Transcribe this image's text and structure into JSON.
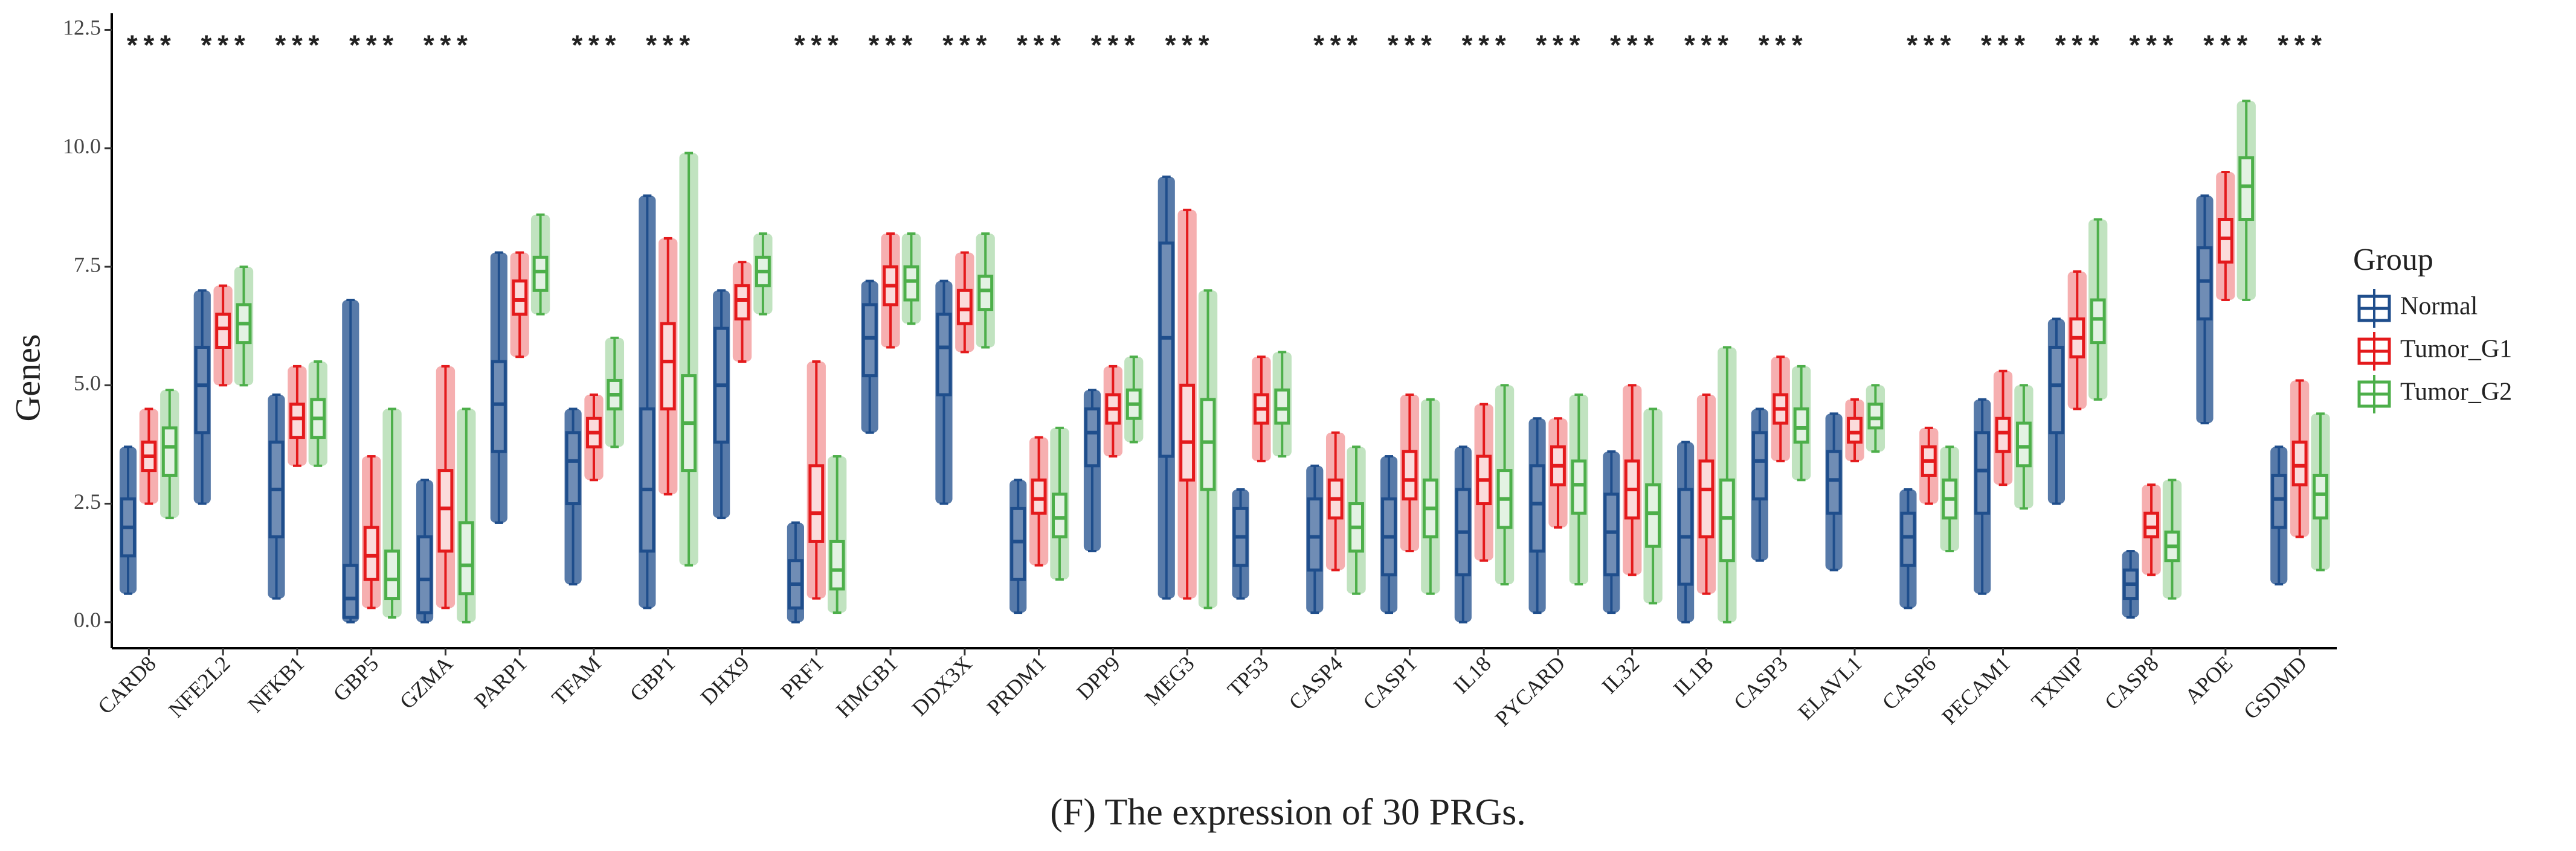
{
  "chart_data": {
    "type": "box",
    "y_label": "Genes",
    "caption": "(F) The expression of 30 PRGs.",
    "legend_title": "Group",
    "legend": "right",
    "categories": [
      "CARD8",
      "NFE2L2",
      "NFKB1",
      "GBP5",
      "GZMA",
      "PARP1",
      "TFAM",
      "GBP1",
      "DHX9",
      "PRF1",
      "HMGB1",
      "DDX3X",
      "PRDM1",
      "DPP9",
      "MEG3",
      "TP53",
      "CASP4",
      "CASP1",
      "IL18",
      "PYCARD",
      "IL32",
      "IL1B",
      "CASP3",
      "ELAVL1",
      "CASP6",
      "PECAM1",
      "TXNIP",
      "CASP8",
      "APOE",
      "GSDMD"
    ],
    "significance": [
      "***",
      "***",
      "***",
      "***",
      "***",
      null,
      "***",
      "***",
      null,
      "***",
      "***",
      "***",
      "***",
      "***",
      "***",
      null,
      "***",
      "***",
      "***",
      "***",
      "***",
      "***",
      "***",
      null,
      "***",
      "***",
      "***",
      "***",
      "***",
      "***"
    ],
    "ylim": [
      -0.55,
      12.85
    ],
    "yticks": [
      {
        "value": 0,
        "label": "0.0"
      },
      {
        "value": 2.5,
        "label": "2.5"
      },
      {
        "value": 5,
        "label": "5.0"
      },
      {
        "value": 7.5,
        "label": "7.5"
      },
      {
        "value": 10,
        "label": "10.0"
      },
      {
        "value": 12.5,
        "label": "12.5"
      }
    ],
    "series": [
      {
        "name": "Normal",
        "color": "#1f4e8c",
        "values": [
          [
            0.6,
            1.4,
            2.0,
            2.6,
            3.7
          ],
          [
            2.5,
            4.0,
            5.0,
            5.8,
            7.0
          ],
          [
            0.5,
            1.8,
            2.8,
            3.8,
            4.8
          ],
          [
            0,
            0.1,
            0.5,
            1.2,
            6.8
          ],
          [
            0,
            0.2,
            0.9,
            1.8,
            3.0
          ],
          [
            2.1,
            3.6,
            4.6,
            5.5,
            7.8
          ],
          [
            0.8,
            2.5,
            3.4,
            4.0,
            4.5
          ],
          [
            0.3,
            1.5,
            2.8,
            4.5,
            9.0
          ],
          [
            2.2,
            3.8,
            5.0,
            6.2,
            7.0
          ],
          [
            0,
            0.3,
            0.8,
            1.3,
            2.1
          ],
          [
            4.0,
            5.2,
            6.0,
            6.7,
            7.2
          ],
          [
            2.5,
            4.8,
            5.8,
            6.5,
            7.2
          ],
          [
            0.2,
            0.9,
            1.7,
            2.4,
            3.0
          ],
          [
            1.5,
            3.3,
            4.0,
            4.5,
            4.9
          ],
          [
            0.5,
            3.5,
            6.0,
            8.0,
            9.4
          ],
          [
            0.5,
            1.2,
            1.8,
            2.4,
            2.8
          ],
          [
            0.2,
            1.1,
            1.8,
            2.6,
            3.3
          ],
          [
            0.2,
            1.0,
            1.8,
            2.6,
            3.5
          ],
          [
            0,
            1.0,
            1.9,
            2.8,
            3.7
          ],
          [
            0.2,
            1.5,
            2.5,
            3.3,
            4.3
          ],
          [
            0.2,
            1.0,
            1.9,
            2.7,
            3.6
          ],
          [
            0,
            0.8,
            1.8,
            2.8,
            3.8
          ],
          [
            1.3,
            2.6,
            3.4,
            4.0,
            4.5
          ],
          [
            1.1,
            2.3,
            3.0,
            3.6,
            4.4
          ],
          [
            0.3,
            1.2,
            1.8,
            2.3,
            2.8
          ],
          [
            0.6,
            2.3,
            3.2,
            4.0,
            4.7
          ],
          [
            2.5,
            4.0,
            5.0,
            5.8,
            6.4
          ],
          [
            0.1,
            0.5,
            0.8,
            1.1,
            1.5
          ],
          [
            4.2,
            6.4,
            7.2,
            7.9,
            9.0
          ],
          [
            0.8,
            2.0,
            2.6,
            3.1,
            3.7
          ]
        ]
      },
      {
        "name": "Tumor_G1",
        "color": "#e41a1c",
        "values": [
          [
            2.5,
            3.2,
            3.5,
            3.8,
            4.5
          ],
          [
            5.0,
            5.8,
            6.2,
            6.5,
            7.1
          ],
          [
            3.3,
            3.9,
            4.3,
            4.6,
            5.4
          ],
          [
            0.3,
            0.9,
            1.4,
            2.0,
            3.5
          ],
          [
            0.3,
            1.5,
            2.4,
            3.2,
            5.4
          ],
          [
            5.6,
            6.5,
            6.8,
            7.2,
            7.8
          ],
          [
            3.0,
            3.7,
            4.0,
            4.3,
            4.8
          ],
          [
            2.7,
            4.5,
            5.5,
            6.3,
            8.1
          ],
          [
            5.5,
            6.4,
            6.8,
            7.1,
            7.6
          ],
          [
            0.5,
            1.7,
            2.3,
            3.3,
            5.5
          ],
          [
            5.8,
            6.7,
            7.1,
            7.5,
            8.2
          ],
          [
            5.7,
            6.3,
            6.6,
            7.0,
            7.8
          ],
          [
            1.2,
            2.3,
            2.6,
            3.0,
            3.9
          ],
          [
            3.5,
            4.2,
            4.5,
            4.8,
            5.4
          ],
          [
            0.5,
            3.0,
            3.8,
            5.0,
            8.7
          ],
          [
            3.4,
            4.2,
            4.5,
            4.8,
            5.6
          ],
          [
            1.1,
            2.2,
            2.6,
            3.0,
            4.0
          ],
          [
            1.5,
            2.6,
            3.0,
            3.6,
            4.8
          ],
          [
            1.3,
            2.5,
            3.0,
            3.5,
            4.6
          ],
          [
            2.0,
            2.9,
            3.3,
            3.7,
            4.3
          ],
          [
            1.0,
            2.2,
            2.8,
            3.4,
            5.0
          ],
          [
            0.6,
            1.8,
            2.8,
            3.4,
            4.8
          ],
          [
            3.4,
            4.2,
            4.5,
            4.8,
            5.6
          ],
          [
            3.4,
            3.8,
            4.0,
            4.3,
            4.7
          ],
          [
            2.5,
            3.1,
            3.4,
            3.7,
            4.1
          ],
          [
            2.9,
            3.6,
            4.0,
            4.3,
            5.3
          ],
          [
            4.5,
            5.6,
            6.0,
            6.4,
            7.4
          ],
          [
            1.0,
            1.8,
            2.0,
            2.3,
            2.9
          ],
          [
            6.8,
            7.6,
            8.1,
            8.5,
            9.5
          ],
          [
            1.8,
            2.9,
            3.3,
            3.8,
            5.1
          ]
        ]
      },
      {
        "name": "Tumor_G2",
        "color": "#4daf4a",
        "values": [
          [
            2.2,
            3.1,
            3.7,
            4.1,
            4.9
          ],
          [
            5.0,
            5.9,
            6.3,
            6.7,
            7.5
          ],
          [
            3.3,
            3.9,
            4.3,
            4.7,
            5.5
          ],
          [
            0.1,
            0.5,
            0.9,
            1.5,
            4.5
          ],
          [
            0,
            0.6,
            1.2,
            2.1,
            4.5
          ],
          [
            6.5,
            7.0,
            7.4,
            7.7,
            8.6
          ],
          [
            3.7,
            4.5,
            4.8,
            5.1,
            6.0
          ],
          [
            1.2,
            3.2,
            4.2,
            5.2,
            9.9
          ],
          [
            6.5,
            7.1,
            7.4,
            7.7,
            8.2
          ],
          [
            0.2,
            0.7,
            1.1,
            1.7,
            3.5
          ],
          [
            6.3,
            6.8,
            7.2,
            7.5,
            8.2
          ],
          [
            5.8,
            6.6,
            7.0,
            7.3,
            8.2
          ],
          [
            0.9,
            1.8,
            2.2,
            2.7,
            4.1
          ],
          [
            3.8,
            4.3,
            4.6,
            4.9,
            5.6
          ],
          [
            0.3,
            2.8,
            3.8,
            4.7,
            7.0
          ],
          [
            3.5,
            4.2,
            4.5,
            4.9,
            5.7
          ],
          [
            0.6,
            1.5,
            2.0,
            2.5,
            3.7
          ],
          [
            0.6,
            1.8,
            2.4,
            3.0,
            4.7
          ],
          [
            0.8,
            2.0,
            2.6,
            3.2,
            5.0
          ],
          [
            0.8,
            2.3,
            2.9,
            3.4,
            4.8
          ],
          [
            0.4,
            1.6,
            2.3,
            2.9,
            4.5
          ],
          [
            0,
            1.3,
            2.2,
            3.0,
            5.8
          ],
          [
            3.0,
            3.8,
            4.1,
            4.5,
            5.4
          ],
          [
            3.6,
            4.1,
            4.3,
            4.6,
            5.0
          ],
          [
            1.5,
            2.2,
            2.6,
            3.0,
            3.7
          ],
          [
            2.4,
            3.3,
            3.7,
            4.2,
            5.0
          ],
          [
            4.7,
            5.9,
            6.4,
            6.8,
            8.5
          ],
          [
            0.5,
            1.3,
            1.6,
            1.9,
            3.0
          ],
          [
            6.8,
            8.5,
            9.2,
            9.8,
            11.0
          ],
          [
            1.1,
            2.2,
            2.7,
            3.1,
            4.4
          ]
        ]
      }
    ]
  }
}
